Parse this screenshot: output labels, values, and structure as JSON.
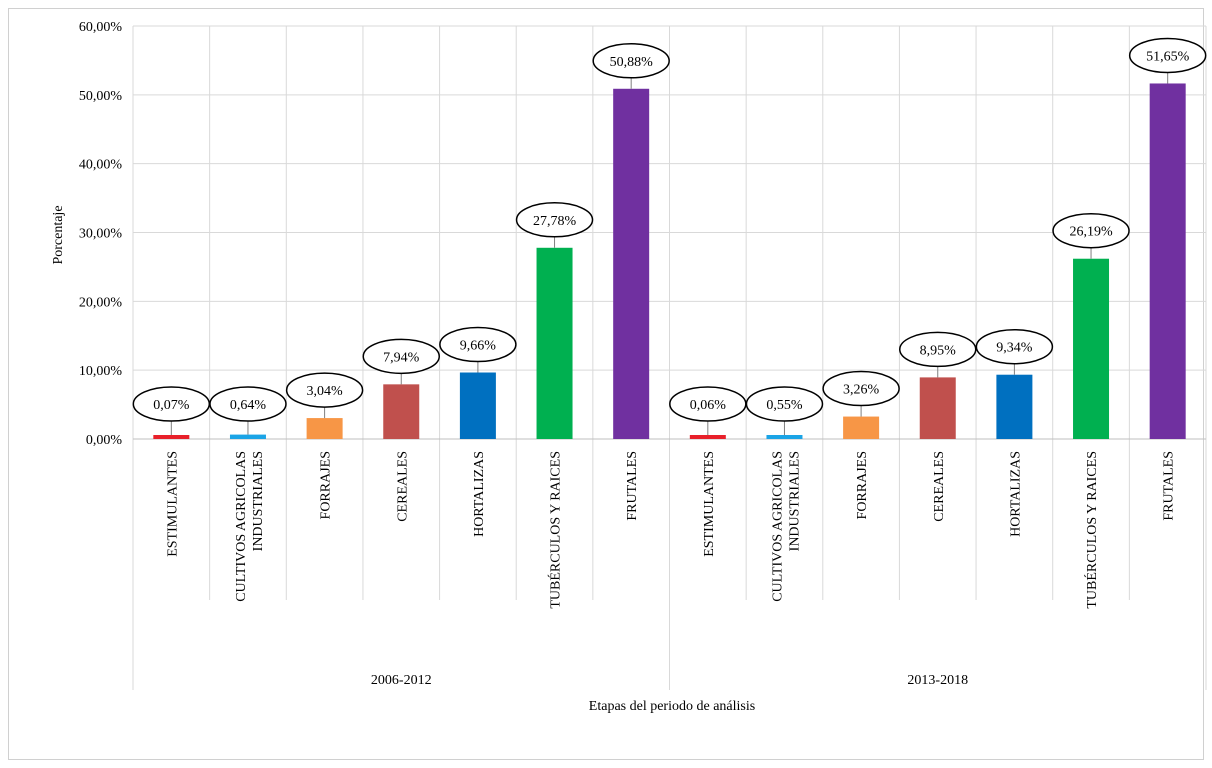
{
  "chart_data": {
    "type": "bar",
    "title": "",
    "ylabel": "Porcentaje",
    "xlabel": "Etapas del periodo de análisis",
    "ylim": [
      0,
      60
    ],
    "yticks": [
      "0,00%",
      "10,00%",
      "20,00%",
      "30,00%",
      "40,00%",
      "50,00%",
      "60,00%"
    ],
    "grid": true,
    "legend": "none",
    "groups": [
      {
        "name": "2006-2012",
        "categories": [
          "ESTIMULANTES",
          "CULTIVOS AGRICOLAS INDUSTRIALES",
          "FORRAJES",
          "CEREALES",
          "HORTALIZAS",
          "TUBÉRCULOS Y RAICES",
          "FRUTALES"
        ],
        "values": [
          0.07,
          0.64,
          3.04,
          7.94,
          9.66,
          27.78,
          50.88
        ],
        "labels": [
          "0,07%",
          "0,64%",
          "3,04%",
          "7,94%",
          "9,66%",
          "27,78%",
          "50,88%"
        ]
      },
      {
        "name": "2013-2018",
        "categories": [
          "ESTIMULANTES",
          "CULTIVOS AGRICOLAS INDUSTRIALES",
          "FORRAJES",
          "CEREALES",
          "HORTALIZAS",
          "TUBÉRCULOS Y RAICES",
          "FRUTALES"
        ],
        "values": [
          0.06,
          0.55,
          3.26,
          8.95,
          9.34,
          26.19,
          51.65
        ],
        "labels": [
          "0,06%",
          "0,55%",
          "3,26%",
          "8,95%",
          "9,34%",
          "26,19%",
          "51,65%"
        ]
      }
    ],
    "colors": [
      "#e8202a",
      "#1ba4e6",
      "#f79646",
      "#c0504d",
      "#0070c0",
      "#00b050",
      "#7030a0"
    ]
  }
}
